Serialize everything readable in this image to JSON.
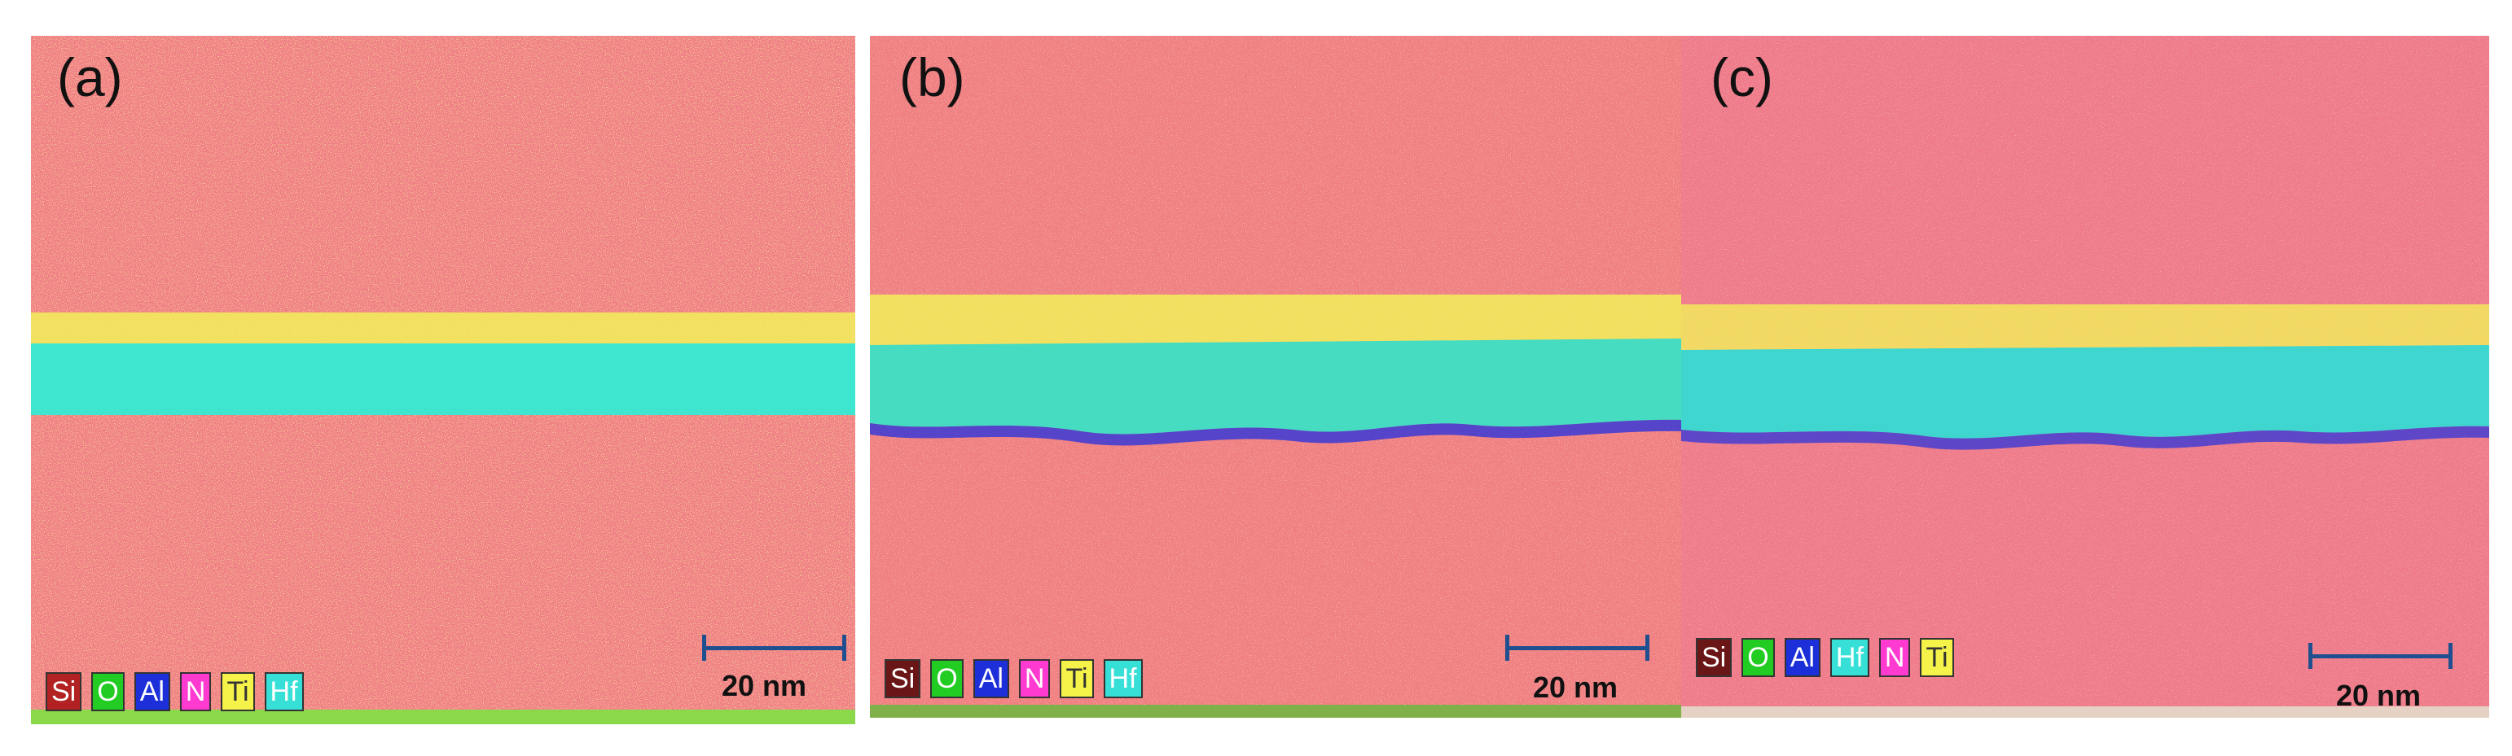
{
  "panels": [
    {
      "label": "(a)",
      "legend": [
        {
          "text": "Si",
          "bg": "#b22222",
          "fg": "#ffffff"
        },
        {
          "text": "O",
          "bg": "#22cc22",
          "fg": "#ffffff"
        },
        {
          "text": "Al",
          "bg": "#1c2fd8",
          "fg": "#ffffff"
        },
        {
          "text": "N",
          "bg": "#ff3ad0",
          "fg": "#ffffff"
        },
        {
          "text": "Ti",
          "bg": "#f5f24a",
          "fg": "#333333"
        },
        {
          "text": "Hf",
          "bg": "#37e0d6",
          "fg": "#ffffff"
        }
      ],
      "scalebar": "20 nm"
    },
    {
      "label": "(b)",
      "legend": [
        {
          "text": "Si",
          "bg": "#6b1616",
          "fg": "#ffffff"
        },
        {
          "text": "O",
          "bg": "#22cc22",
          "fg": "#ffffff"
        },
        {
          "text": "Al",
          "bg": "#1c2fd8",
          "fg": "#ffffff"
        },
        {
          "text": "N",
          "bg": "#ff3ad0",
          "fg": "#ffffff"
        },
        {
          "text": "Ti",
          "bg": "#f5f24a",
          "fg": "#333333"
        },
        {
          "text": "Hf",
          "bg": "#37e0d6",
          "fg": "#ffffff"
        }
      ],
      "scalebar": "20 nm"
    },
    {
      "label": "(c)",
      "legend": [
        {
          "text": "Si",
          "bg": "#6b1616",
          "fg": "#ffffff"
        },
        {
          "text": "O",
          "bg": "#22cc22",
          "fg": "#ffffff"
        },
        {
          "text": "Al",
          "bg": "#1c2fd8",
          "fg": "#ffffff"
        },
        {
          "text": "Hf",
          "bg": "#37e0d6",
          "fg": "#ffffff"
        },
        {
          "text": "N",
          "bg": "#ff3ad0",
          "fg": "#ffffff"
        },
        {
          "text": "Ti",
          "bg": "#f5f24a",
          "fg": "#333333"
        }
      ],
      "scalebar": "20 nm"
    }
  ],
  "colors": {
    "matrix": "#f07a86",
    "speckle": "#e7d25a",
    "ti_layer": "#f2f05a",
    "hf_layer": "#3fe6cf",
    "al_interface": "#3a3ad6",
    "substrate_edge": "#8bd84a"
  }
}
